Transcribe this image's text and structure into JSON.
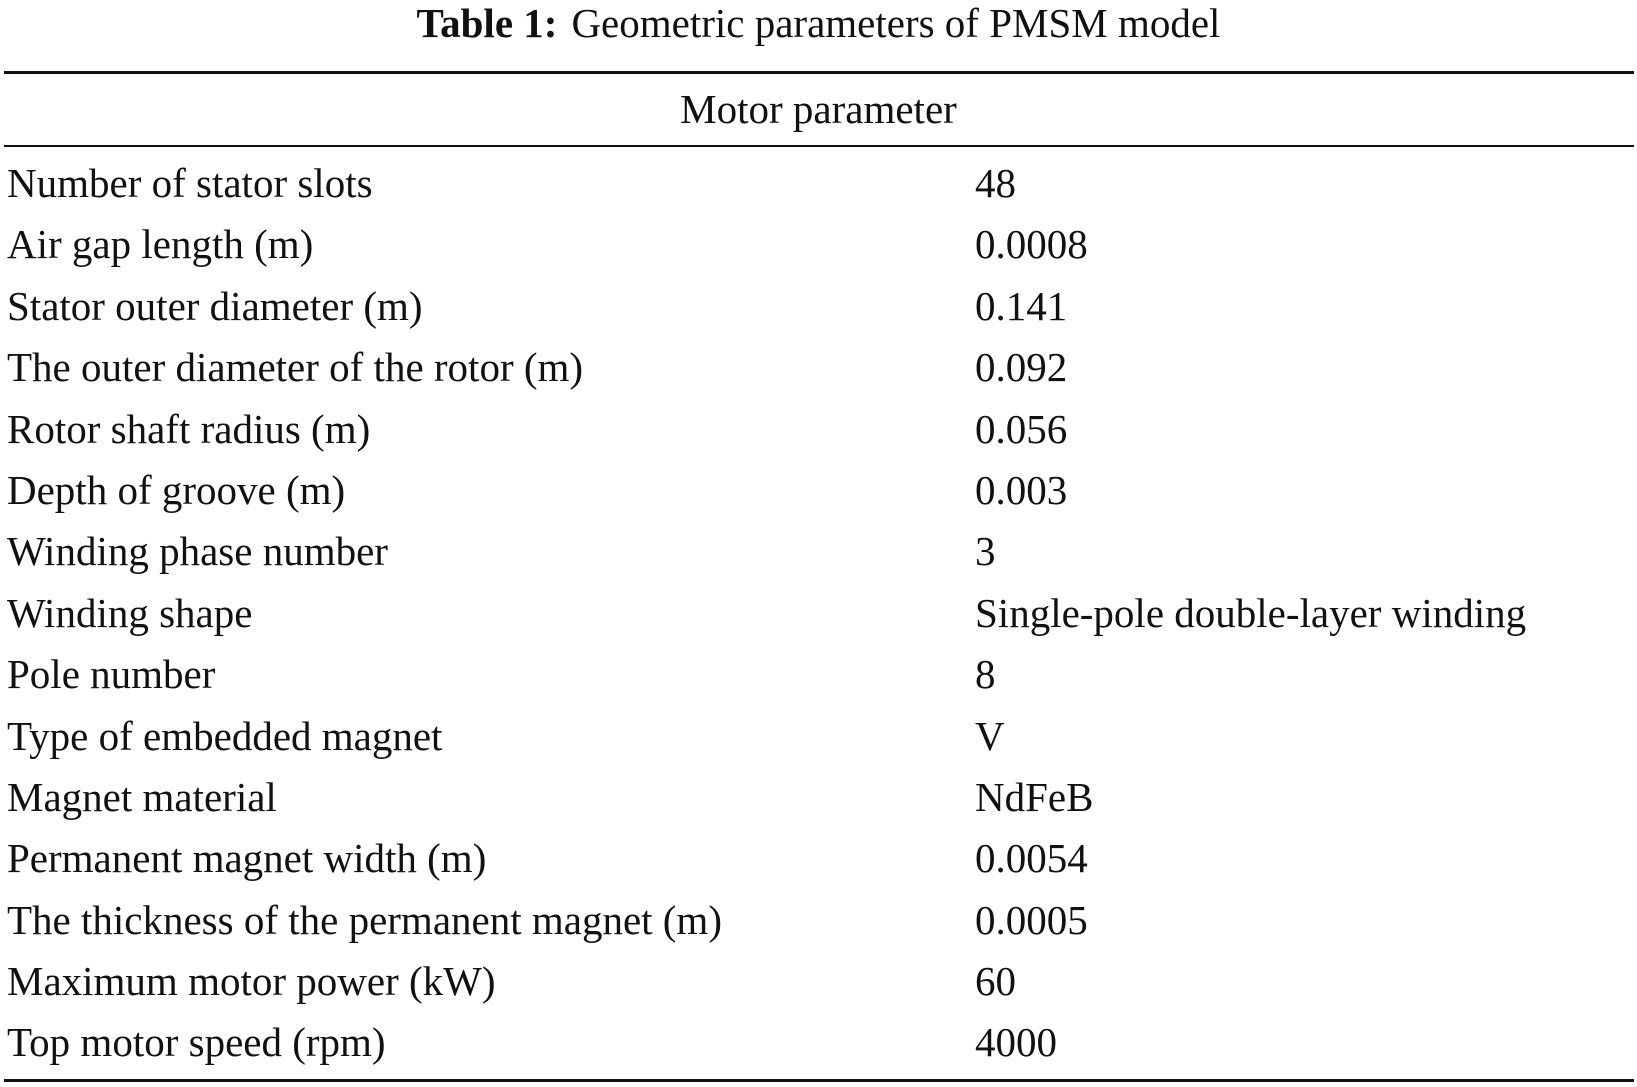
{
  "caption": {
    "label": "Table 1:",
    "title": "Geometric parameters of PMSM model"
  },
  "table": {
    "header": "Motor parameter",
    "rows": [
      [
        "Number of stator slots",
        "48"
      ],
      [
        "Air gap length (m)",
        "0.0008"
      ],
      [
        "Stator outer diameter (m)",
        "0.141"
      ],
      [
        "The outer diameter of the rotor (m)",
        "0.092"
      ],
      [
        "Rotor shaft radius (m)",
        "0.056"
      ],
      [
        "Depth of groove (m)",
        "0.003"
      ],
      [
        "Winding phase number",
        "3"
      ],
      [
        "Winding shape",
        "Single-pole double-layer winding"
      ],
      [
        "Pole number",
        "8"
      ],
      [
        "Type of embedded magnet",
        "V"
      ],
      [
        "Magnet material",
        "NdFeB"
      ],
      [
        "Permanent magnet width (m)",
        "0.0054"
      ],
      [
        "The thickness of the permanent magnet (m)",
        "0.0005"
      ],
      [
        "Maximum motor power (kW)",
        "60"
      ],
      [
        "Top motor speed (rpm)",
        "4000"
      ]
    ]
  }
}
